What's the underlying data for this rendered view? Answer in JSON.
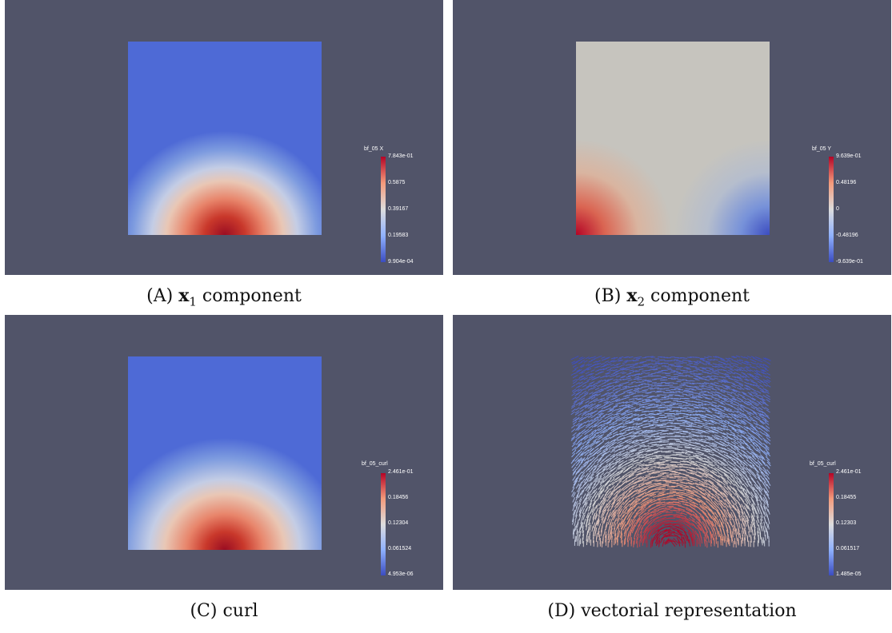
{
  "panels": [
    {
      "id": "a",
      "colorbar": {
        "title": "bf_05 X",
        "ticks": [
          "7.843e-01",
          "0.5875",
          "0.39167",
          "0.19583",
          "9.904e-04"
        ]
      },
      "caption": {
        "letter": "(A)",
        "bold": "x",
        "sub": "1",
        "text": "component"
      }
    },
    {
      "id": "b",
      "colorbar": {
        "title": "bf_05 Y",
        "ticks": [
          "9.639e-01",
          "0.48196",
          "0",
          "-0.48196",
          "-9.639e-01"
        ]
      },
      "caption": {
        "letter": "(B)",
        "bold": "x",
        "sub": "2",
        "text": "component"
      }
    },
    {
      "id": "c",
      "colorbar": {
        "title": "bf_05_curl",
        "ticks": [
          "2.461e-01",
          "0.18456",
          "0.12304",
          "0.061524",
          "4.953e-06"
        ]
      },
      "caption": {
        "letter": "(C)",
        "text": "curl"
      }
    },
    {
      "id": "d",
      "colorbar": {
        "title": "bf_05_curl",
        "ticks": [
          "2.461e-01",
          "0.18455",
          "0.12303",
          "0.061517",
          "1.485e-05"
        ]
      },
      "caption": {
        "letter": "(D)",
        "text": "vectorial representation"
      }
    }
  ],
  "colors": {
    "background": "#515469",
    "cold": "#3b4cc0",
    "neutral": "#dddddd",
    "hot": "#b40426"
  }
}
